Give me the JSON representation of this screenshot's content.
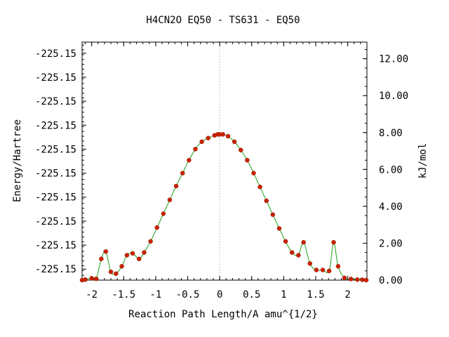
{
  "chart_data": {
    "type": "line",
    "title": "H4CN2O   EQ50 - TS631 - EQ50",
    "xlabel": "Reaction Path Length/A amu^{1/2}",
    "ylabel": "Energy/Hartree",
    "y2label": "kJ/mol",
    "xlim": [
      -2.15,
      2.3
    ],
    "ylim": [
      0,
      12.9
    ],
    "y2lim": [
      0,
      12.9
    ],
    "x_ticks": [
      -2,
      -1.5,
      -1,
      -0.5,
      0,
      0.5,
      1,
      1.5,
      2
    ],
    "x_tick_labels": [
      "-2",
      "-1.5",
      "-1",
      "-0.5",
      "0",
      "0.5",
      "1",
      "1.5",
      "2"
    ],
    "y_tick_positions": [
      0.6,
      1.9,
      3.2,
      4.5,
      5.8,
      7.1,
      8.4,
      9.7,
      11.0,
      12.3
    ],
    "y_tick_labels": [
      "-225.15",
      "-225.15",
      "-225.15",
      "-225.15",
      "-225.15",
      "-225.15",
      "-225.15",
      "-225.15",
      "-225.15",
      "-225.15"
    ],
    "y2_ticks": [
      0,
      2,
      4,
      6,
      8,
      10,
      12
    ],
    "y2_tick_labels": [
      "0.00",
      "2.00",
      "4.00",
      "6.00",
      "8.00",
      "10.00",
      "12.00"
    ],
    "reference_line_x": 0,
    "grid": false,
    "curve_color": "#1aa01a",
    "point_color": "#cc2200",
    "series": [
      {
        "x": [
          -2.15,
          -2.1,
          -2.0,
          -1.93,
          -1.85,
          -1.78,
          -1.7,
          -1.62,
          -1.53,
          -1.45,
          -1.36,
          -1.26,
          -1.18,
          -1.08,
          -0.98,
          -0.88,
          -0.78,
          -0.68,
          -0.58,
          -0.48,
          -0.38,
          -0.28,
          -0.18,
          -0.08,
          -0.03,
          0.0,
          0.05,
          0.13,
          0.23,
          0.33,
          0.43,
          0.53,
          0.63,
          0.73,
          0.83,
          0.93,
          1.03,
          1.13,
          1.23,
          1.31,
          1.41,
          1.51,
          1.61,
          1.71,
          1.78,
          1.85,
          1.95,
          2.05,
          2.15,
          2.23,
          2.29
        ],
        "y": [
          0.0,
          0.03,
          0.1,
          0.07,
          1.15,
          1.55,
          0.45,
          0.35,
          0.75,
          1.35,
          1.45,
          1.15,
          1.5,
          2.1,
          2.85,
          3.6,
          4.35,
          5.1,
          5.8,
          6.5,
          7.1,
          7.5,
          7.7,
          7.85,
          7.9,
          7.9,
          7.9,
          7.8,
          7.5,
          7.05,
          6.5,
          5.8,
          5.05,
          4.3,
          3.55,
          2.8,
          2.1,
          1.5,
          1.35,
          2.05,
          0.9,
          0.55,
          0.55,
          0.5,
          2.05,
          0.75,
          0.12,
          0.06,
          0.03,
          0.02,
          0.0
        ]
      }
    ]
  }
}
